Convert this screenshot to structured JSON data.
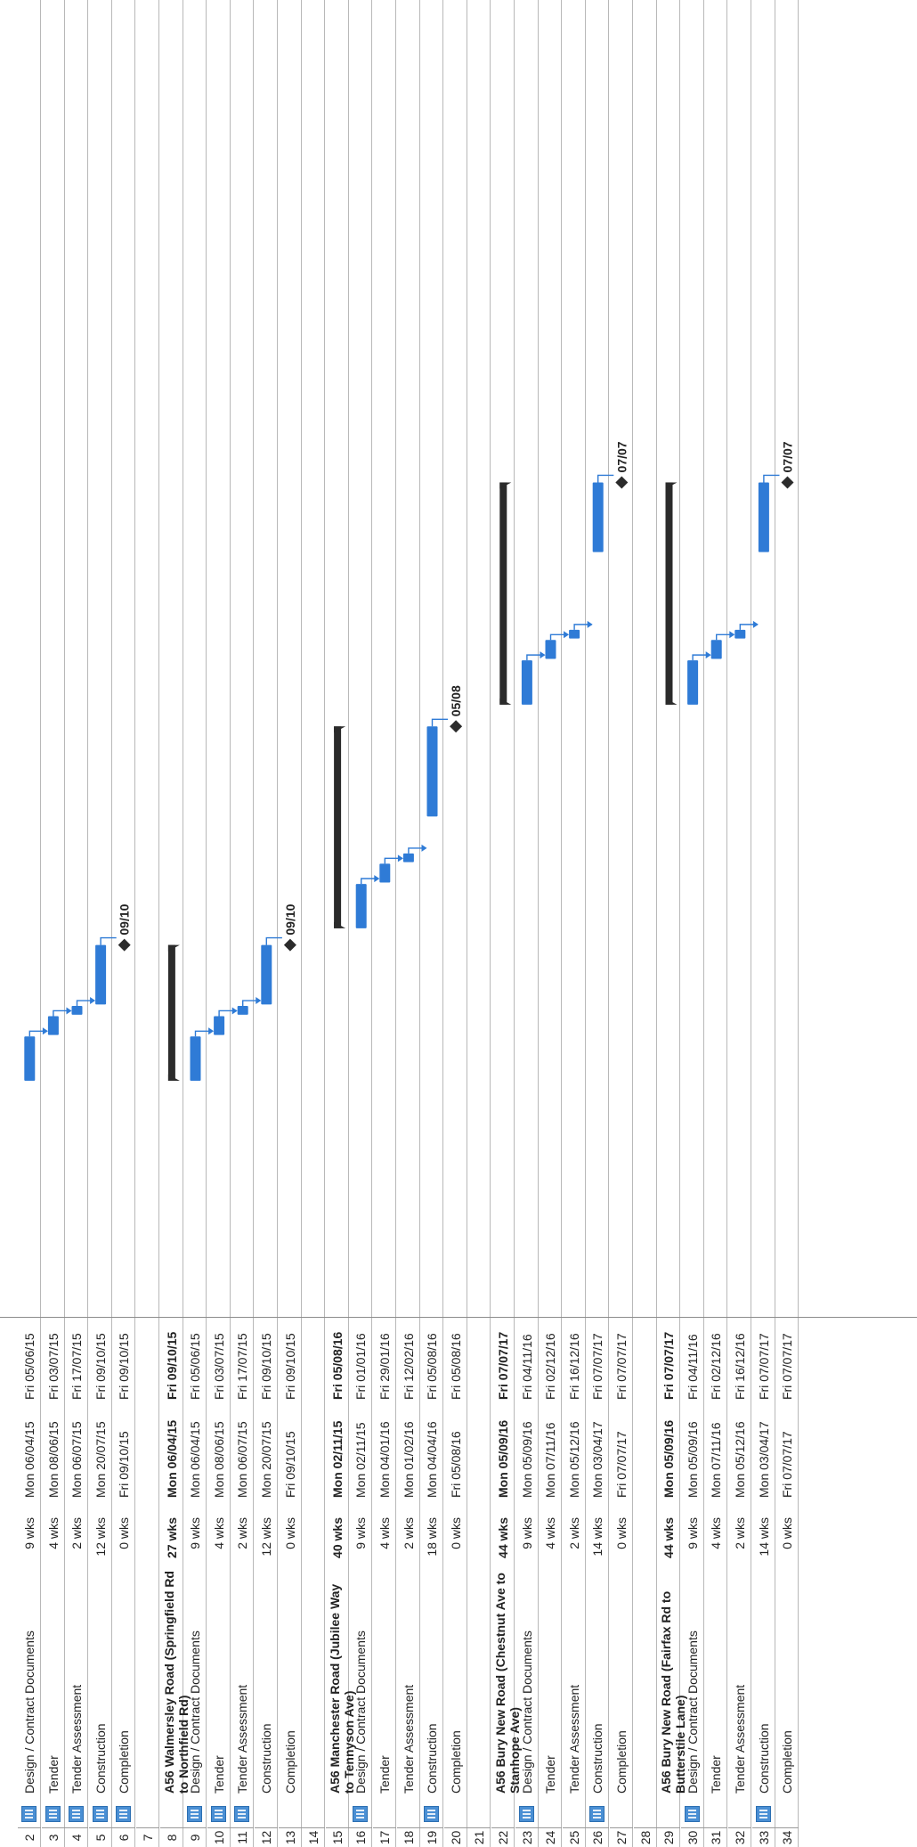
{
  "tasks": [
    {
      "num": "2",
      "name": "Design / Contract Documents",
      "duration": "9 wks",
      "start": "Mon 06/04/15",
      "finish": "Fri 05/06/15",
      "indicator": true
    },
    {
      "num": "3",
      "name": "Tender",
      "duration": "4 wks",
      "start": "Mon 08/06/15",
      "finish": "Fri 03/07/15",
      "indicator": true
    },
    {
      "num": "4",
      "name": "Tender Assessment",
      "duration": "2 wks",
      "start": "Mon 06/07/15",
      "finish": "Fri 17/07/15",
      "indicator": true
    },
    {
      "num": "5",
      "name": "Construction",
      "duration": "12 wks",
      "start": "Mon 20/07/15",
      "finish": "Fri 09/10/15",
      "indicator": true
    },
    {
      "num": "6",
      "name": "Completion",
      "duration": "0 wks",
      "start": "Fri 09/10/15",
      "finish": "Fri 09/10/15",
      "indicator": true
    },
    {
      "num": "7",
      "name": "",
      "duration": "",
      "start": "",
      "finish": "",
      "indicator": false
    },
    {
      "num": "8",
      "name": "A56 Walmersley Road (Springfield Rd to Northfield Rd)",
      "duration": "27 wks",
      "start": "Mon 06/04/15",
      "finish": "Fri 09/10/15",
      "summary": true,
      "indicator": false
    },
    {
      "num": "9",
      "name": "Design / Contract Documents",
      "duration": "9 wks",
      "start": "Mon 06/04/15",
      "finish": "Fri 05/06/15",
      "indicator": true
    },
    {
      "num": "10",
      "name": "Tender",
      "duration": "4 wks",
      "start": "Mon 08/06/15",
      "finish": "Fri 03/07/15",
      "indicator": true
    },
    {
      "num": "11",
      "name": "Tender Assessment",
      "duration": "2 wks",
      "start": "Mon 06/07/15",
      "finish": "Fri 17/07/15",
      "indicator": true
    },
    {
      "num": "12",
      "name": "Construction",
      "duration": "12 wks",
      "start": "Mon 20/07/15",
      "finish": "Fri 09/10/15",
      "indicator": false
    },
    {
      "num": "13",
      "name": "Completion",
      "duration": "0 wks",
      "start": "Fri 09/10/15",
      "finish": "Fri 09/10/15",
      "indicator": false
    },
    {
      "num": "14",
      "name": "",
      "duration": "",
      "start": "",
      "finish": "",
      "indicator": false
    },
    {
      "num": "15",
      "name": "A56 Manchester Road (Jubilee Way to Tennyson Ave)",
      "duration": "40 wks",
      "start": "Mon 02/11/15",
      "finish": "Fri 05/08/16",
      "summary": true,
      "indicator": false
    },
    {
      "num": "16",
      "name": "Design / Contract Documents",
      "duration": "9 wks",
      "start": "Mon 02/11/15",
      "finish": "Fri 01/01/16",
      "indicator": true
    },
    {
      "num": "17",
      "name": "Tender",
      "duration": "4 wks",
      "start": "Mon 04/01/16",
      "finish": "Fri 29/01/16",
      "indicator": false
    },
    {
      "num": "18",
      "name": "Tender Assessment",
      "duration": "2 wks",
      "start": "Mon 01/02/16",
      "finish": "Fri 12/02/16",
      "indicator": false
    },
    {
      "num": "19",
      "name": "Construction",
      "duration": "18 wks",
      "start": "Mon 04/04/16",
      "finish": "Fri 05/08/16",
      "indicator": true
    },
    {
      "num": "20",
      "name": "Completion",
      "duration": "0 wks",
      "start": "Fri 05/08/16",
      "finish": "Fri 05/08/16",
      "indicator": false
    },
    {
      "num": "21",
      "name": "",
      "duration": "",
      "start": "",
      "finish": "",
      "indicator": false
    },
    {
      "num": "22",
      "name": "A56 Bury New Road (Chestnut Ave to Stanhope Ave)",
      "duration": "44 wks",
      "start": "Mon 05/09/16",
      "finish": "Fri 07/07/17",
      "summary": true,
      "indicator": false
    },
    {
      "num": "23",
      "name": "Design / Contract Documents",
      "duration": "9 wks",
      "start": "Mon 05/09/16",
      "finish": "Fri 04/11/16",
      "indicator": true
    },
    {
      "num": "24",
      "name": "Tender",
      "duration": "4 wks",
      "start": "Mon 07/11/16",
      "finish": "Fri 02/12/16",
      "indicator": false
    },
    {
      "num": "25",
      "name": "Tender Assessment",
      "duration": "2 wks",
      "start": "Mon 05/12/16",
      "finish": "Fri 16/12/16",
      "indicator": false
    },
    {
      "num": "26",
      "name": "Construction",
      "duration": "14 wks",
      "start": "Mon 03/04/17",
      "finish": "Fri 07/07/17",
      "indicator": true
    },
    {
      "num": "27",
      "name": "Completion",
      "duration": "0 wks",
      "start": "Fri 07/07/17",
      "finish": "Fri 07/07/17",
      "indicator": false
    },
    {
      "num": "28",
      "name": "",
      "duration": "",
      "start": "",
      "finish": "",
      "indicator": false
    },
    {
      "num": "29",
      "name": "A56 Bury New Road (Fairfax Rd to Butterstile Lane)",
      "duration": "44 wks",
      "start": "Mon 05/09/16",
      "finish": "Fri 07/07/17",
      "summary": true,
      "indicator": false
    },
    {
      "num": "30",
      "name": "Design / Contract Documents",
      "duration": "9 wks",
      "start": "Mon 05/09/16",
      "finish": "Fri 04/11/16",
      "indicator": true
    },
    {
      "num": "31",
      "name": "Tender",
      "duration": "4 wks",
      "start": "Mon 07/11/16",
      "finish": "Fri 02/12/16",
      "indicator": false
    },
    {
      "num": "32",
      "name": "Tender Assessment",
      "duration": "2 wks",
      "start": "Mon 05/12/16",
      "finish": "Fri 16/12/16",
      "indicator": false
    },
    {
      "num": "33",
      "name": "Construction",
      "duration": "14 wks",
      "start": "Mon 03/04/17",
      "finish": "Fri 07/07/17",
      "indicator": true
    },
    {
      "num": "34",
      "name": "Completion",
      "duration": "0 wks",
      "start": "Fri 07/07/17",
      "finish": "Fri 07/07/17",
      "indicator": false
    }
  ],
  "milestones": {
    "group1": "09/10",
    "group2": "09/10",
    "group3": "05/08",
    "group4": "07/07",
    "group5": "07/07"
  },
  "colors": {
    "task_bar": "#2f7bd6",
    "summary_bar": "#2b2b2b",
    "indicator": "#4a8fd4"
  },
  "icons": {
    "indicator": "notes-indicator-icon",
    "milestone": "milestone-diamond-icon"
  }
}
